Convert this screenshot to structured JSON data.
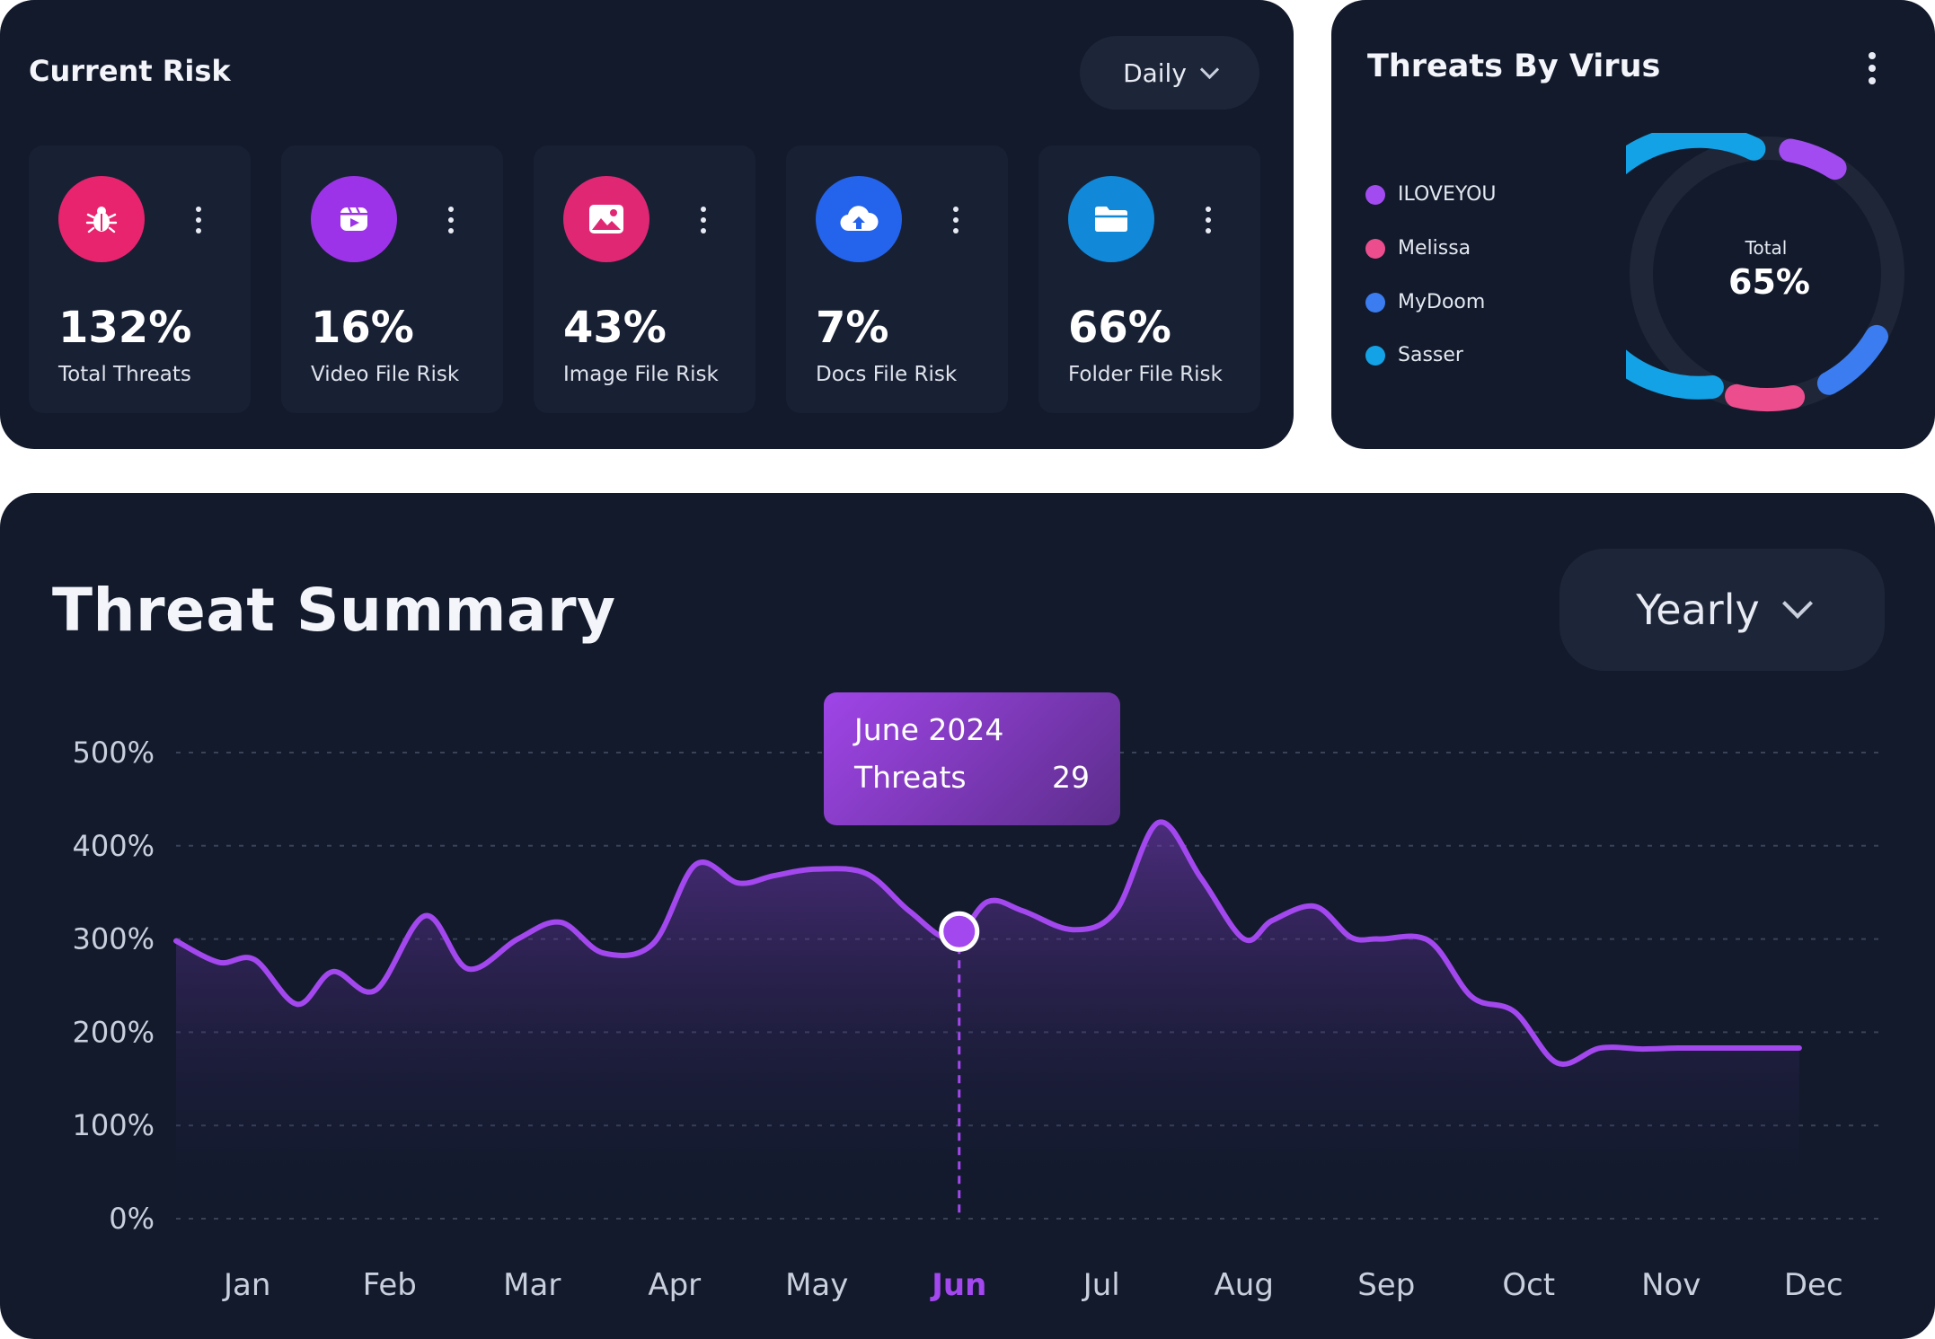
{
  "current_risk": {
    "title": "Current Risk",
    "period": "Daily",
    "cards": [
      {
        "value": "132%",
        "label": "Total Threats",
        "icon": "bug-icon",
        "color": "#e8246f"
      },
      {
        "value": "16%",
        "label": "Video File Risk",
        "icon": "video-icon",
        "color": "#9d33e8"
      },
      {
        "value": "43%",
        "label": "Image File Risk",
        "icon": "image-icon",
        "color": "#e02774"
      },
      {
        "value": "7%",
        "label": "Docs File Risk",
        "icon": "cloud-upload-icon",
        "color": "#2463eb"
      },
      {
        "value": "66%",
        "label": "Folder File Risk",
        "icon": "folder-icon",
        "color": "#1188d8"
      }
    ]
  },
  "threats_by_virus": {
    "title": "Threats By Virus",
    "legend": [
      {
        "name": "ILOVEYOU",
        "color": "#a24bf0"
      },
      {
        "name": "Melissa",
        "color": "#ec4d8d"
      },
      {
        "name": "MyDoom",
        "color": "#3b7cf0"
      },
      {
        "name": "Sasser",
        "color": "#13a2e6"
      }
    ],
    "total_label": "Total",
    "total_value": "65%"
  },
  "threat_summary": {
    "title": "Threat Summary",
    "period": "Yearly",
    "tooltip": {
      "date": "June 2024",
      "metric": "Threats",
      "value": "29"
    }
  },
  "chart_data": {
    "type": "area",
    "categories": [
      "Jan",
      "Feb",
      "Mar",
      "Apr",
      "May",
      "Jun",
      "Jul",
      "Aug",
      "Sep",
      "Oct",
      "Nov",
      "Dec"
    ],
    "highlighted_category": "Jun",
    "yticks": [
      "0%",
      "100%",
      "200%",
      "300%",
      "400%",
      "500%"
    ],
    "ylim": [
      0,
      500
    ],
    "grid": true,
    "color": "#a347ee",
    "x": [
      0,
      0.3,
      0.55,
      0.85,
      1.1,
      1.4,
      1.75,
      2.05,
      2.4,
      2.7,
      3.0,
      3.35,
      3.65,
      3.95,
      4.2,
      4.5,
      4.85,
      5.15,
      5.45,
      5.7,
      5.95,
      6.3,
      6.6,
      6.9,
      7.2,
      7.5,
      7.7,
      8.0,
      8.25,
      8.45,
      8.8,
      9.1,
      9.4,
      9.7,
      10.0,
      10.3,
      10.55,
      10.8,
      11.05,
      11.4
    ],
    "values": [
      298,
      275,
      278,
      230,
      265,
      245,
      325,
      268,
      300,
      318,
      285,
      295,
      380,
      360,
      368,
      375,
      370,
      330,
      300,
      340,
      330,
      310,
      330,
      425,
      365,
      300,
      320,
      335,
      302,
      300,
      298,
      238,
      222,
      167,
      183,
      182,
      183,
      183,
      183,
      183
    ]
  }
}
